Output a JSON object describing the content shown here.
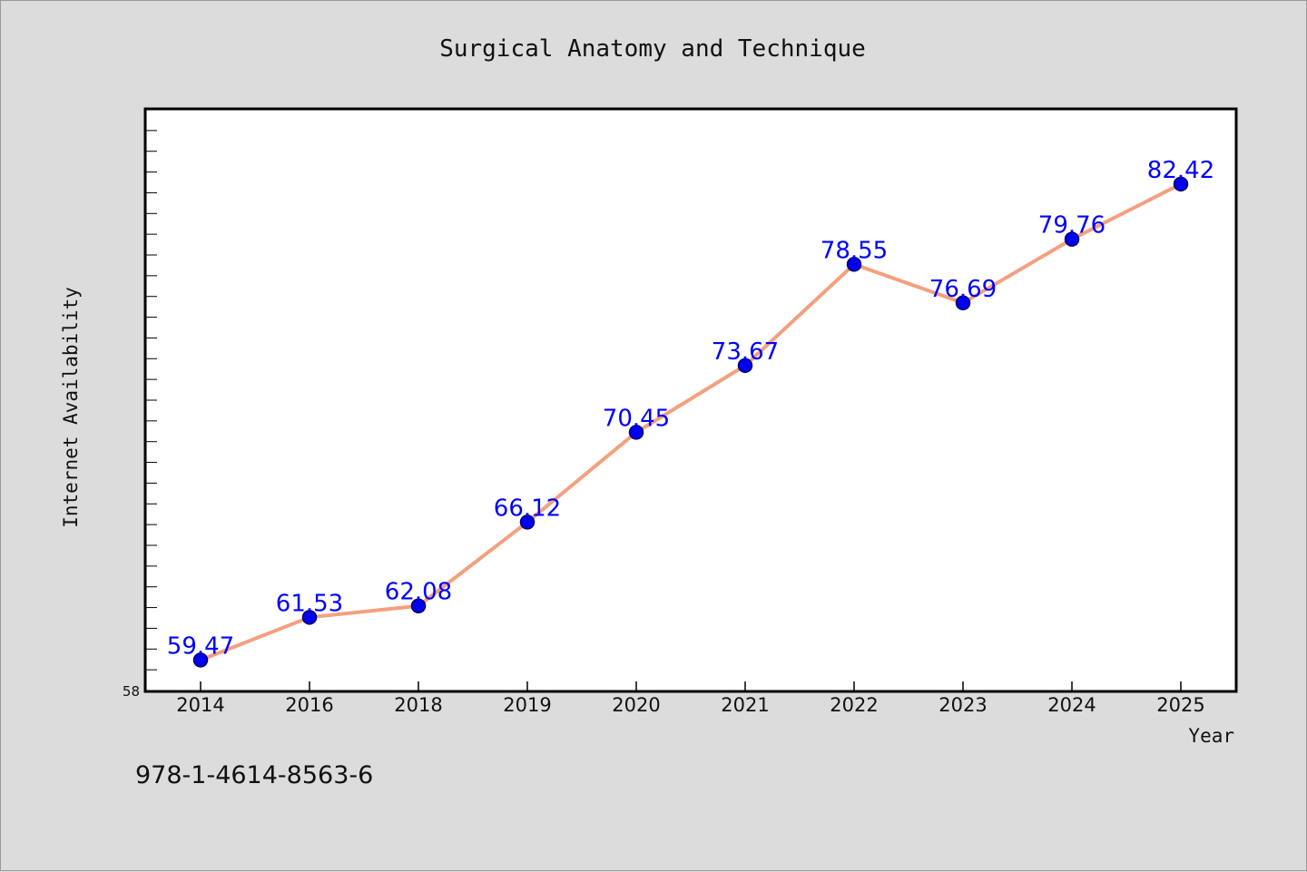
{
  "chart_data": {
    "type": "line",
    "title": "Surgical Anatomy and Technique",
    "xlabel": "Year",
    "ylabel": "Internet Availability",
    "categories": [
      "2014",
      "2016",
      "2018",
      "2019",
      "2020",
      "2021",
      "2022",
      "2023",
      "2024",
      "2025"
    ],
    "series": [
      {
        "values": [
          59.47,
          61.53,
          62.08,
          66.12,
          70.45,
          73.67,
          78.55,
          76.69,
          79.76,
          82.42
        ]
      }
    ],
    "data_labels": [
      "59.47",
      "61.53",
      "62.08",
      "66.12",
      "70.45",
      "73.67",
      "78.55",
      "76.69",
      "79.76",
      "82.42"
    ],
    "ylim": [
      58,
      86
    ],
    "y_tick_labels": [
      "58"
    ],
    "grid": false,
    "legend": "none",
    "colors": {
      "line": "#f4a07e",
      "marker": "#0000ee",
      "marker_edge": "#00006a",
      "label": "#0000ff",
      "background": "#dcdcdc",
      "plot_background": "#ffffff"
    }
  },
  "footer": {
    "isbn": "978-1-4614-8563-6"
  }
}
